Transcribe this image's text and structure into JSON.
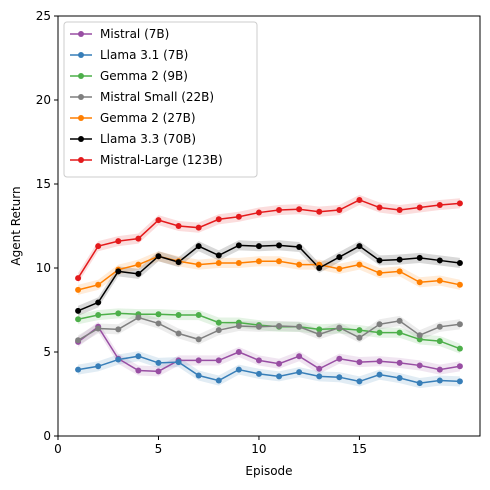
{
  "chart_data": {
    "type": "line",
    "title": "",
    "xlabel": "Episode",
    "ylabel": "Agent Return",
    "xlim": [
      0,
      21
    ],
    "ylim": [
      0,
      25
    ],
    "x_ticks": [
      0,
      5,
      10,
      15
    ],
    "y_ticks": [
      0,
      5,
      10,
      15,
      20,
      25
    ],
    "grid": false,
    "legend_position": "upper-left",
    "shaded_band": true,
    "x": [
      1,
      2,
      3,
      4,
      5,
      6,
      7,
      8,
      9,
      10,
      11,
      12,
      13,
      14,
      15,
      16,
      17,
      18,
      19,
      20
    ],
    "series": [
      {
        "name": "Mistral (7B)",
        "color": "#984ea3",
        "values": [
          5.6,
          6.5,
          4.6,
          3.9,
          3.85,
          4.5,
          4.5,
          4.5,
          5.0,
          4.5,
          4.3,
          4.75,
          4.0,
          4.6,
          4.4,
          4.45,
          4.35,
          4.2,
          3.95,
          4.15
        ]
      },
      {
        "name": "Llama 3.1 (7B)",
        "color": "#377eb8",
        "values": [
          3.95,
          4.15,
          4.55,
          4.75,
          4.35,
          4.4,
          3.6,
          3.3,
          3.95,
          3.7,
          3.55,
          3.8,
          3.55,
          3.5,
          3.25,
          3.65,
          3.45,
          3.15,
          3.3,
          3.25
        ]
      },
      {
        "name": "Gemma 2 (9B)",
        "color": "#4daf4a",
        "values": [
          6.95,
          7.2,
          7.3,
          7.25,
          7.25,
          7.2,
          7.2,
          6.75,
          6.75,
          6.6,
          6.5,
          6.5,
          6.35,
          6.4,
          6.3,
          6.15,
          6.15,
          5.75,
          5.65,
          5.2
        ]
      },
      {
        "name": "Mistral Small (22B)",
        "color": "#7f7f7f",
        "values": [
          5.7,
          6.4,
          6.35,
          7.05,
          6.7,
          6.1,
          5.75,
          6.3,
          6.55,
          6.5,
          6.55,
          6.5,
          6.05,
          6.45,
          5.85,
          6.65,
          6.85,
          6.0,
          6.5,
          6.65
        ]
      },
      {
        "name": "Gemma 2 (27B)",
        "color": "#ff7f00",
        "values": [
          8.7,
          9.0,
          9.9,
          10.2,
          10.7,
          10.4,
          10.2,
          10.3,
          10.3,
          10.4,
          10.4,
          10.2,
          10.2,
          9.95,
          10.2,
          9.7,
          9.8,
          9.15,
          9.25,
          9.0
        ]
      },
      {
        "name": "Llama 3.3 (70B)",
        "color": "#000000",
        "values": [
          7.45,
          7.95,
          9.8,
          9.65,
          10.7,
          10.35,
          11.3,
          10.75,
          11.35,
          11.3,
          11.35,
          11.25,
          10.0,
          10.65,
          11.3,
          10.45,
          10.5,
          10.6,
          10.45,
          10.3
        ]
      },
      {
        "name": "Mistral-Large (123B)",
        "color": "#e41a1c",
        "values": [
          9.4,
          11.3,
          11.6,
          11.75,
          12.85,
          12.5,
          12.4,
          12.9,
          13.05,
          13.3,
          13.45,
          13.5,
          13.35,
          13.45,
          14.05,
          13.6,
          13.45,
          13.6,
          13.75,
          13.85
        ]
      }
    ]
  }
}
